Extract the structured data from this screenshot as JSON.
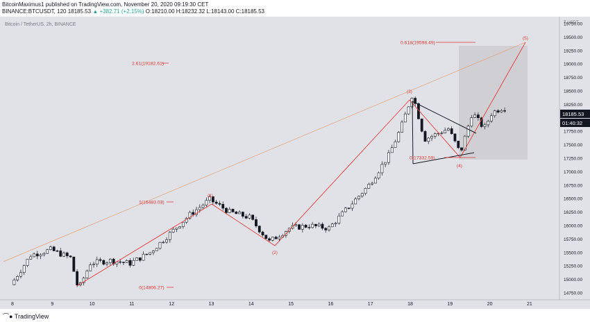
{
  "header": {
    "publish_line": "BitcoinMaximus1 published on TradingView.com, November 20, 2020 09:19:30 CET",
    "symbol": "BINANCE:BTCUSDT, 120",
    "last_price": "18185.53",
    "change": "▲ +382.71 (+2.15%)",
    "ohlc": "O:18210.00 H:18232.32 L:18143.00 C:18185.53"
  },
  "watermark": "Bitcoin / TetherUS, 2h, BINANCE",
  "price_scale": {
    "currency": "₮ USDT",
    "ticks": [
      "19750.00",
      "19500.00",
      "19250.00",
      "19000.00",
      "18750.00",
      "18500.00",
      "18250.00",
      "17750.00",
      "17500.00",
      "17250.00",
      "17000.00",
      "16750.00",
      "16500.00",
      "16250.00",
      "16000.00",
      "15750.00",
      "15500.00",
      "15250.00",
      "15000.00",
      "14750.00"
    ],
    "last_price_label": "18185.53",
    "countdown_label": "01:40:32"
  },
  "time_axis": {
    "labels": [
      "8",
      "9",
      "10",
      "11",
      "12",
      "13",
      "14",
      "15",
      "16",
      "17",
      "18",
      "19",
      "20",
      "21"
    ]
  },
  "fib_levels": [
    {
      "label": "2.61(19182.61)",
      "price": 19182.61
    },
    {
      "label": "1(16483.03)",
      "price": 16483.03
    },
    {
      "label": "0(14806.27)",
      "price": 14806.27
    },
    {
      "label": "0.618(19598.49)",
      "price": 19598.49
    },
    {
      "label": "0(17332.59)",
      "price": 17332.59
    }
  ],
  "wave_labels": [
    "(1)",
    "(2)",
    "(3)",
    "(4)",
    "(5)"
  ],
  "chart_data": {
    "type": "candlestick",
    "symbol": "BTCUSDT",
    "interval": "2h",
    "x_range": [
      "Nov 8",
      "Nov 21"
    ],
    "ylim": [
      14650,
      19950
    ],
    "waypoints_daily_close": [
      {
        "x": "Nov 8",
        "y": 14900
      },
      {
        "x": "Nov 8.5",
        "y": 15450
      },
      {
        "x": "Nov 9",
        "y": 15550
      },
      {
        "x": "Nov 9.5",
        "y": 15400
      },
      {
        "x": "Nov 9.7",
        "y": 14806
      },
      {
        "x": "Nov 10",
        "y": 15300
      },
      {
        "x": "Nov 10.5",
        "y": 15350
      },
      {
        "x": "Nov 11",
        "y": 15300
      },
      {
        "x": "Nov 11.5",
        "y": 15500
      },
      {
        "x": "Nov 12",
        "y": 15850
      },
      {
        "x": "Nov 12.5",
        "y": 16200
      },
      {
        "x": "Nov 13",
        "y": 16483
      },
      {
        "x": "Nov 13.5",
        "y": 16250
      },
      {
        "x": "Nov 14",
        "y": 16150
      },
      {
        "x": "Nov 14.5",
        "y": 15700
      },
      {
        "x": "Nov 15",
        "y": 15950
      },
      {
        "x": "Nov 15.5",
        "y": 16000
      },
      {
        "x": "Nov 16",
        "y": 15950
      },
      {
        "x": "Nov 16.5",
        "y": 16350
      },
      {
        "x": "Nov 17",
        "y": 16750
      },
      {
        "x": "Nov 17.5",
        "y": 17300
      },
      {
        "x": "Nov 17.8",
        "y": 17800
      },
      {
        "x": "Nov 18.1",
        "y": 18450
      },
      {
        "x": "Nov 18.4",
        "y": 17600
      },
      {
        "x": "Nov 18.7",
        "y": 17700
      },
      {
        "x": "Nov 19",
        "y": 17800
      },
      {
        "x": "Nov 19.3",
        "y": 17340
      },
      {
        "x": "Nov 19.6",
        "y": 18100
      },
      {
        "x": "Nov 19.9",
        "y": 17800
      },
      {
        "x": "Nov 20.1",
        "y": 18100
      },
      {
        "x": "Nov 20.35",
        "y": 18185
      }
    ],
    "elliott_wave_points": [
      {
        "label": "(1)",
        "x": "Nov 13",
        "y": 16483
      },
      {
        "label": "(2)",
        "x": "Nov 14.7",
        "y": 15620
      },
      {
        "label": "(3)",
        "x": "Nov 18.1",
        "y": 18480
      },
      {
        "label": "(4)",
        "x": "Nov 19.3",
        "y": 17340
      },
      {
        "label": "(5)",
        "x": "Nov 21",
        "y": 19600
      }
    ],
    "last_price": 18185.53
  },
  "colors": {
    "up": "#ffffff",
    "down": "#131722",
    "wave": "#e53935",
    "fib": "#e53935",
    "accent": "#2962ff"
  },
  "footer": {
    "logo": "TradingView"
  }
}
